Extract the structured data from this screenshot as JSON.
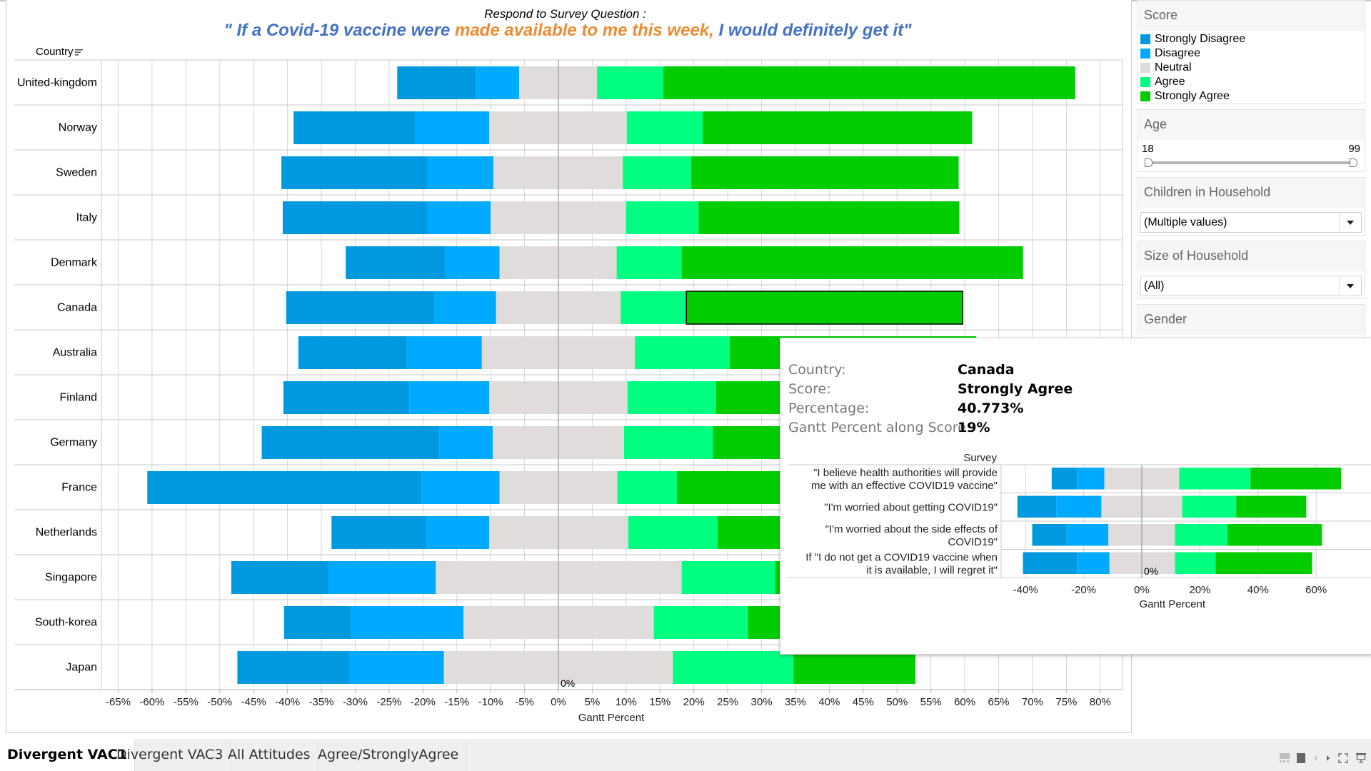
{
  "header": {
    "subtitle": "Respond to Survey Question :",
    "headline_part1": "\" If a Covid-19 vaccine were ",
    "headline_part2": "made available to me this week,",
    "headline_part3": " I would definitely get it\""
  },
  "colors": {
    "strongly_disagree": "#0099e0",
    "disagree": "#00aaff",
    "neutral": "#e0dcdb",
    "agree": "#00ff80",
    "strongly_agree": "#00cc00",
    "headline_blue": "#4472c4",
    "headline_orange": "#ed8b32"
  },
  "chart_data": [
    {
      "type": "bar",
      "subtype": "diverging-stacked-gantt",
      "title": "Respond to Survey Question : \" If a Covid-19 vaccine were made available to me this week, I would definitely get it\"",
      "row_header": "Country",
      "xlabel": "Gantt Percent",
      "xlim": [
        -67,
        83
      ],
      "xticks": [
        -65,
        -60,
        -55,
        -50,
        -45,
        -40,
        -35,
        -30,
        -25,
        -20,
        -15,
        -10,
        -5,
        0,
        5,
        10,
        15,
        20,
        25,
        30,
        35,
        40,
        45,
        50,
        55,
        60,
        65,
        70,
        75,
        80
      ],
      "xtick_labels": [
        "-65%",
        "-60%",
        "-55%",
        "-50%",
        "-45%",
        "-40%",
        "-35%",
        "-30%",
        "-25%",
        "-20%",
        "-15%",
        "-10%",
        "-5%",
        "0%",
        "5%",
        "10%",
        "15%",
        "20%",
        "25%",
        "30%",
        "35%",
        "40%",
        "45%",
        "50%",
        "55%",
        "60%",
        "65%",
        "70%",
        "75%",
        "80%"
      ],
      "zero_label": "0%",
      "grid": true,
      "series_names": [
        "Strongly Disagree",
        "Disagree",
        "Neutral",
        "Agree",
        "Strongly Agree"
      ],
      "note": "segment boundaries in Gantt Percent: [SD start, D start, N start, A start, SA start, SA end]",
      "categories": [
        "United-kingdom",
        "Norway",
        "Sweden",
        "Italy",
        "Denmark",
        "Canada",
        "Australia",
        "Finland",
        "Germany",
        "France",
        "Netherlands",
        "Singapore",
        "South-korea",
        "Japan"
      ],
      "bounds": [
        [
          -23.8,
          -12.1,
          -5.8,
          5.7,
          15.5,
          76.3
        ],
        [
          -39.1,
          -21.1,
          -10.2,
          10.1,
          21.3,
          61.1
        ],
        [
          -40.9,
          -19.3,
          -9.6,
          9.5,
          19.6,
          59.1
        ],
        [
          -40.7,
          -19.3,
          -10.0,
          10.0,
          20.7,
          59.2
        ],
        [
          -31.4,
          -16.7,
          -8.7,
          8.6,
          18.2,
          68.6
        ],
        [
          -40.2,
          -18.3,
          -9.2,
          9.2,
          18.9,
          59.7
        ],
        [
          -38.4,
          -22.4,
          -11.3,
          11.3,
          25.3,
          61.7
        ],
        [
          -40.6,
          -22.0,
          -10.2,
          10.2,
          23.3,
          63.0
        ],
        [
          -43.8,
          -17.6,
          -9.7,
          9.7,
          22.8,
          62.0
        ],
        [
          -60.7,
          -20.3,
          -8.7,
          8.7,
          17.5,
          60.0
        ],
        [
          -33.5,
          -19.5,
          -10.2,
          10.3,
          23.5,
          62.0
        ],
        [
          -48.3,
          -34.0,
          -18.1,
          18.2,
          32.0,
          58.0
        ],
        [
          -40.5,
          -30.6,
          -14.0,
          14.1,
          28.0,
          57.0
        ],
        [
          -47.4,
          -30.8,
          -16.9,
          16.9,
          34.7,
          52.7
        ]
      ],
      "highlighted": {
        "country": "Canada",
        "score": "Strongly Agree"
      }
    },
    {
      "type": "bar",
      "subtype": "diverging-stacked-gantt",
      "row_header": "Survey",
      "xlabel": "Gantt Percent",
      "xlim": [
        -48,
        75
      ],
      "xticks": [
        -40,
        -20,
        0,
        20,
        40,
        60
      ],
      "xtick_labels": [
        "-40%",
        "-20%",
        "0%",
        "20%",
        "40%",
        "60%"
      ],
      "zero_label": "0%",
      "categories": [
        "\"I believe health authorities will provide me with an effective COVID19 vaccine\"",
        "\"I'm worried about getting COVID19\"",
        "\"I'm worried about the side effects of COVID19\"",
        "If \"I do not get a COVID19 vaccine when it is available, I will regret it\""
      ],
      "category_lines": [
        [
          "\"I believe health authorities will provide",
          "me with an effective COVID19 vaccine\""
        ],
        [
          "\"I'm worried about getting COVID19\""
        ],
        [
          "\"I'm worried about the side effects of",
          "COVID19\""
        ],
        [
          "If \"I do not get a COVID19 vaccine when",
          "it is available, I will regret it\""
        ]
      ],
      "bounds": [
        [
          -31.0,
          -22.3,
          -12.9,
          12.9,
          37.4,
          68.6
        ],
        [
          -42.8,
          -29.4,
          -13.9,
          13.9,
          32.5,
          56.6
        ],
        [
          -37.7,
          -25.9,
          -11.5,
          11.4,
          29.5,
          62.0
        ],
        [
          -40.9,
          -22.3,
          -11.1,
          11.4,
          25.4,
          58.6
        ]
      ]
    }
  ],
  "tooltip": {
    "rows": [
      {
        "label": "Country:",
        "value": "Canada"
      },
      {
        "label": "Score:",
        "value": "Strongly Agree"
      },
      {
        "label": "Percentage:",
        "value": "40.773%"
      },
      {
        "label": "Gantt Percent along Score:",
        "value": "19%"
      }
    ]
  },
  "sidebar": {
    "score": {
      "title": "Score",
      "items": [
        "Strongly Disagree",
        "Disagree",
        "Neutral",
        "Agree",
        "Strongly Agree"
      ]
    },
    "age": {
      "title": "Age",
      "min_label": "18",
      "max_label": "99",
      "range": [
        18,
        99
      ]
    },
    "children": {
      "title": "Children in Household",
      "value": "(Multiple values)"
    },
    "household": {
      "title": "Size of Household",
      "value": "(All)"
    },
    "gender": {
      "title": "Gender"
    }
  },
  "tabs": [
    "Divergent VAC1",
    "Divergent VAC3",
    "All Attitudes",
    "Agree/StronglyAgree"
  ],
  "active_tab": 0
}
